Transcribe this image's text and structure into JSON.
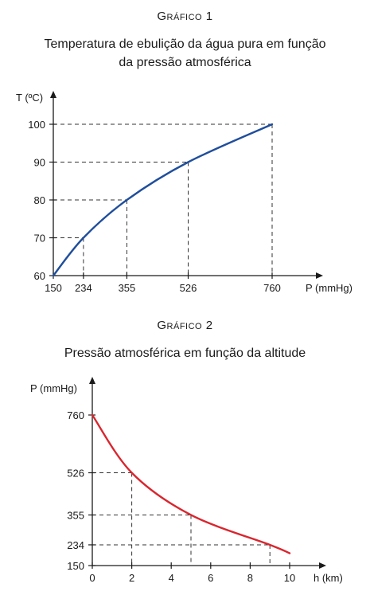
{
  "chart_data": [
    {
      "type": "line",
      "heading": "Gráfico 1",
      "title": "Temperatura de ebulição da água pura em função da pressão atmosférica",
      "title_lines": [
        "Temperatura de ebulição da água pura em função",
        "da pressão atmosférica"
      ],
      "xlabel": "P (mmHg)",
      "ylabel": "T (ºC)",
      "xticks": [
        150,
        234,
        355,
        526,
        760
      ],
      "xtick_labels": [
        "150",
        "234",
        "355",
        "526",
        "760"
      ],
      "yticks": [
        60,
        70,
        80,
        90,
        100
      ],
      "ytick_labels": [
        "60",
        "70",
        "80",
        "90",
        "100"
      ],
      "x": [
        150,
        234,
        355,
        526,
        760
      ],
      "y": [
        60,
        70,
        80,
        90,
        100
      ],
      "reference_points": [
        [
          234,
          70
        ],
        [
          355,
          80
        ],
        [
          526,
          90
        ],
        [
          760,
          100
        ]
      ],
      "line_color": "#1f4e9c",
      "grid": false
    },
    {
      "type": "line",
      "heading": "Gráfico 2",
      "title": "Pressão atmosférica em função da altitude",
      "title_lines": [
        "Pressão atmosférica em função da altitude"
      ],
      "xlabel": "h (km)",
      "ylabel": "P (mmHg)",
      "xticks": [
        0,
        2,
        4,
        6,
        8,
        10
      ],
      "xtick_labels": [
        "0",
        "2",
        "4",
        "6",
        "8",
        "10"
      ],
      "yticks": [
        150,
        234,
        355,
        526,
        760
      ],
      "ytick_labels": [
        "150",
        "234",
        "355",
        "526",
        "760"
      ],
      "x": [
        0,
        2,
        5,
        9,
        10
      ],
      "y": [
        760,
        526,
        355,
        234,
        200
      ],
      "reference_points": [
        [
          2,
          526
        ],
        [
          5,
          355
        ],
        [
          9,
          234
        ]
      ],
      "line_color": "#d9262e",
      "grid": false
    }
  ]
}
